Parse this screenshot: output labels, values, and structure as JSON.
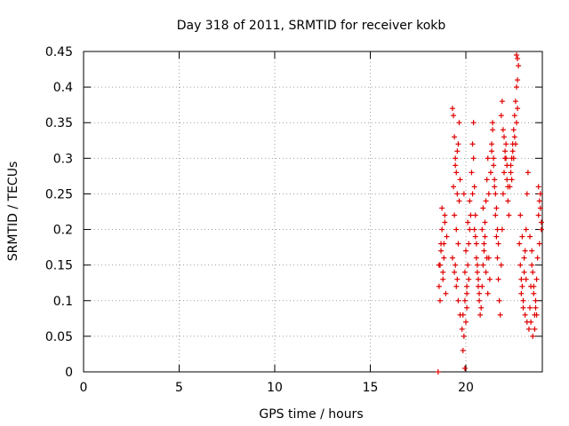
{
  "chart_data": {
    "type": "scatter",
    "title": "Day 318 of 2011, SRMTID for receiver kokb",
    "xlabel": "GPS time / hours",
    "ylabel": "SRMTID / TECUs",
    "xlim": [
      0,
      24
    ],
    "ylim": [
      0,
      0.45
    ],
    "xticks": [
      "0",
      "5",
      "10",
      "15",
      "20"
    ],
    "yticks": [
      "0",
      "0.05",
      "0.1",
      "0.15",
      "0.2",
      "0.25",
      "0.3",
      "0.35",
      "0.4",
      "0.45"
    ],
    "grid": true,
    "marker": "+",
    "color": "#e00000",
    "series": [
      {
        "name": "SRMTID",
        "x": [
          18.55,
          18.6,
          18.65,
          18.7,
          18.75,
          18.8,
          18.85,
          18.9,
          18.95,
          19.0,
          18.6,
          18.7,
          18.8,
          18.9,
          18.65,
          18.75,
          18.85,
          19.3,
          19.35,
          19.4,
          19.45,
          19.5,
          19.55,
          19.6,
          19.65,
          19.7,
          19.4,
          19.5,
          19.6,
          19.35,
          19.45,
          19.55,
          19.65,
          19.3,
          19.4,
          19.5,
          19.6,
          19.7,
          19.45,
          19.55,
          19.8,
          19.85,
          19.9,
          19.95,
          20.0,
          20.05,
          20.1,
          20.15,
          20.2,
          20.25,
          19.85,
          19.95,
          20.05,
          20.15,
          19.9,
          20.0,
          20.1,
          20.2,
          20.05,
          19.95,
          20.3,
          20.35,
          20.4,
          20.45,
          20.5,
          20.55,
          20.6,
          20.65,
          20.7,
          20.75,
          20.35,
          20.45,
          20.55,
          20.65,
          20.4,
          20.5,
          20.6,
          20.7,
          20.8,
          20.85,
          20.9,
          20.95,
          21.0,
          21.05,
          21.1,
          21.15,
          21.2,
          21.25,
          20.85,
          20.95,
          21.05,
          21.15,
          20.9,
          21.0,
          21.1,
          21.2,
          21.3,
          21.35,
          21.4,
          21.45,
          21.5,
          21.55,
          21.6,
          21.65,
          21.7,
          21.75,
          21.35,
          21.45,
          21.55,
          21.65,
          21.4,
          21.5,
          21.6,
          21.7,
          21.8,
          21.85,
          21.9,
          21.95,
          22.0,
          22.05,
          22.1,
          22.15,
          22.2,
          22.25,
          21.85,
          21.95,
          22.05,
          22.15,
          21.9,
          22.0,
          22.1,
          22.2,
          22.3,
          22.35,
          22.4,
          22.45,
          22.5,
          22.55,
          22.6,
          22.65,
          22.7,
          22.75,
          22.35,
          22.45,
          22.55,
          22.65,
          22.4,
          22.5,
          22.6,
          22.7,
          22.65,
          22.7,
          22.8,
          22.85,
          22.9,
          22.95,
          23.0,
          23.05,
          23.1,
          23.15,
          23.2,
          23.25,
          22.85,
          22.95,
          23.05,
          23.15,
          22.9,
          23.0,
          23.1,
          23.2,
          23.3,
          23.35,
          23.4,
          23.45,
          23.5,
          23.55,
          23.6,
          23.65,
          23.7,
          23.75,
          23.35,
          23.45,
          23.55,
          23.65,
          23.4,
          23.5,
          23.6,
          23.7,
          23.8,
          23.85,
          23.9,
          23.95,
          23.85,
          23.9,
          23.8,
          23.95
        ],
        "y": [
          0.0,
          0.12,
          0.15,
          0.18,
          0.2,
          0.13,
          0.16,
          0.22,
          0.11,
          0.19,
          0.15,
          0.17,
          0.14,
          0.21,
          0.1,
          0.23,
          0.18,
          0.37,
          0.36,
          0.33,
          0.3,
          0.28,
          0.25,
          0.32,
          0.35,
          0.27,
          0.22,
          0.2,
          0.18,
          0.26,
          0.29,
          0.31,
          0.24,
          0.16,
          0.14,
          0.12,
          0.1,
          0.08,
          0.15,
          0.13,
          0.06,
          0.08,
          0.05,
          0.1,
          0.07,
          0.12,
          0.15,
          0.18,
          0.2,
          0.22,
          0.03,
          0.005,
          0.09,
          0.13,
          0.25,
          0.17,
          0.21,
          0.24,
          0.11,
          0.14,
          0.28,
          0.32,
          0.35,
          0.26,
          0.22,
          0.18,
          0.15,
          0.12,
          0.1,
          0.08,
          0.25,
          0.2,
          0.16,
          0.13,
          0.3,
          0.19,
          0.14,
          0.11,
          0.09,
          0.12,
          0.15,
          0.18,
          0.21,
          0.24,
          0.27,
          0.3,
          0.16,
          0.13,
          0.2,
          0.17,
          0.14,
          0.11,
          0.23,
          0.19,
          0.16,
          0.25,
          0.28,
          0.31,
          0.34,
          0.29,
          0.26,
          0.22,
          0.19,
          0.16,
          0.13,
          0.1,
          0.32,
          0.3,
          0.25,
          0.2,
          0.35,
          0.27,
          0.23,
          0.18,
          0.08,
          0.15,
          0.2,
          0.25,
          0.28,
          0.3,
          0.32,
          0.29,
          0.26,
          0.22,
          0.36,
          0.34,
          0.31,
          0.27,
          0.38,
          0.33,
          0.3,
          0.24,
          0.26,
          0.28,
          0.3,
          0.32,
          0.34,
          0.36,
          0.38,
          0.4,
          0.44,
          0.43,
          0.29,
          0.31,
          0.33,
          0.35,
          0.27,
          0.3,
          0.32,
          0.41,
          0.445,
          0.37,
          0.18,
          0.15,
          0.13,
          0.12,
          0.1,
          0.14,
          0.17,
          0.2,
          0.25,
          0.28,
          0.22,
          0.19,
          0.16,
          0.13,
          0.11,
          0.09,
          0.08,
          0.07,
          0.06,
          0.09,
          0.12,
          0.15,
          0.14,
          0.11,
          0.08,
          0.1,
          0.13,
          0.16,
          0.19,
          0.17,
          0.12,
          0.09,
          0.07,
          0.05,
          0.06,
          0.08,
          0.22,
          0.24,
          0.25,
          0.2,
          0.18,
          0.23,
          0.26,
          0.21
        ]
      }
    ]
  }
}
